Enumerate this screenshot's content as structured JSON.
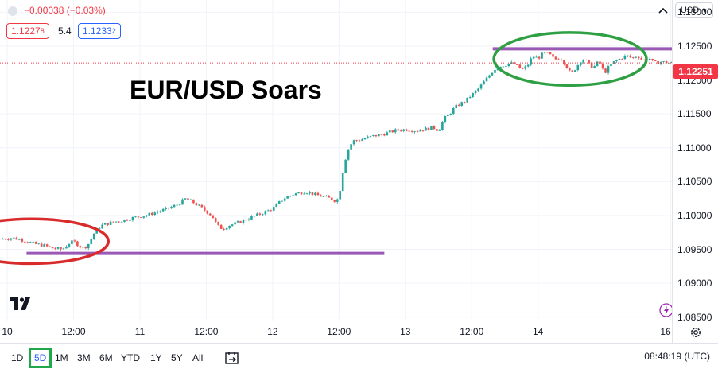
{
  "chart_data": {
    "type": "candlestick",
    "title": "EUR/USD Soars",
    "currency": "USD",
    "ylim": [
      1.0845,
      1.1318
    ],
    "yticks": [
      "1.13000",
      "1.12500",
      "1.12000",
      "1.11500",
      "1.11000",
      "1.10500",
      "1.10000",
      "1.09500",
      "1.09000",
      "1.08500"
    ],
    "ytick_values": [
      1.13,
      1.125,
      1.12,
      1.115,
      1.11,
      1.105,
      1.1,
      1.095,
      1.09,
      1.085
    ],
    "xticks": [
      {
        "label": "10",
        "t": 0
      },
      {
        "label": "12:00",
        "t": 12
      },
      {
        "label": "11",
        "t": 24
      },
      {
        "label": "12:00",
        "t": 36
      },
      {
        "label": "12",
        "t": 48
      },
      {
        "label": "12:00",
        "t": 60
      },
      {
        "label": "13",
        "t": 72
      },
      {
        "label": "12:00",
        "t": 84
      },
      {
        "label": "14",
        "t": 96
      },
      {
        "label": "16",
        "t": 120
      }
    ],
    "xlim": [
      -1.3,
      120.2
    ],
    "path": [
      [
        -1.3,
        1.0965
      ],
      [
        1,
        1.0967
      ],
      [
        3,
        1.0963
      ],
      [
        5,
        1.0958
      ],
      [
        6.5,
        1.0956
      ],
      [
        8,
        1.0952
      ],
      [
        10,
        1.095
      ],
      [
        11,
        1.0958
      ],
      [
        12,
        1.0962
      ],
      [
        13.5,
        1.0952
      ],
      [
        14.5,
        1.0955
      ],
      [
        15.8,
        1.0975
      ],
      [
        17,
        1.0985
      ],
      [
        19,
        1.099
      ],
      [
        21,
        1.0993
      ],
      [
        23,
        1.0997
      ],
      [
        25,
        1.1
      ],
      [
        27,
        1.1005
      ],
      [
        29,
        1.101
      ],
      [
        31,
        1.1017
      ],
      [
        32.3,
        1.1025
      ],
      [
        33.5,
        1.102
      ],
      [
        35,
        1.1012
      ],
      [
        37,
        1.1
      ],
      [
        38,
        1.0985
      ],
      [
        39,
        1.098
      ],
      [
        40,
        1.0985
      ],
      [
        42,
        1.099
      ],
      [
        44,
        1.0997
      ],
      [
        46,
        1.1003
      ],
      [
        48,
        1.101
      ],
      [
        50,
        1.1025
      ],
      [
        52,
        1.1032
      ],
      [
        54,
        1.1035
      ],
      [
        56,
        1.103
      ],
      [
        58,
        1.1026
      ],
      [
        59.3,
        1.1022
      ],
      [
        60,
        1.1025
      ],
      [
        60.3,
        1.1045
      ],
      [
        60.8,
        1.107
      ],
      [
        61.5,
        1.1095
      ],
      [
        62.5,
        1.111
      ],
      [
        64,
        1.1112
      ],
      [
        66,
        1.1117
      ],
      [
        68,
        1.112
      ],
      [
        70,
        1.1125
      ],
      [
        72,
        1.1127
      ],
      [
        74,
        1.1125
      ],
      [
        76,
        1.1128
      ],
      [
        77,
        1.113
      ],
      [
        78,
        1.1125
      ],
      [
        79,
        1.1143
      ],
      [
        80,
        1.115
      ],
      [
        81,
        1.116
      ],
      [
        82,
        1.1165
      ],
      [
        83,
        1.117
      ],
      [
        84,
        1.1178
      ],
      [
        85,
        1.1185
      ],
      [
        86,
        1.1195
      ],
      [
        87,
        1.1205
      ],
      [
        88,
        1.1215
      ],
      [
        89,
        1.122
      ],
      [
        90,
        1.1222
      ],
      [
        91,
        1.1225
      ],
      [
        92,
        1.1222
      ],
      [
        93,
        1.1215
      ],
      [
        94,
        1.122
      ],
      [
        95,
        1.1235
      ],
      [
        96,
        1.1232
      ],
      [
        97,
        1.124
      ],
      [
        98,
        1.1238
      ],
      [
        99,
        1.123
      ],
      [
        100,
        1.1233
      ],
      [
        101,
        1.1222
      ],
      [
        102,
        1.1208
      ],
      [
        103,
        1.122
      ],
      [
        104,
        1.1232
      ],
      [
        105,
        1.1225
      ],
      [
        106,
        1.1218
      ],
      [
        107,
        1.1228
      ],
      [
        108,
        1.121
      ],
      [
        109,
        1.1222
      ],
      [
        110,
        1.1228
      ],
      [
        111,
        1.1232
      ],
      [
        112,
        1.1236
      ],
      [
        113,
        1.1232
      ],
      [
        114,
        1.1236
      ],
      [
        115,
        1.1228
      ],
      [
        116,
        1.1233
      ],
      [
        117,
        1.1225
      ],
      [
        118,
        1.1227
      ],
      [
        119,
        1.1226
      ],
      [
        120.2,
        1.1225
      ]
    ],
    "last_price": "1.12251",
    "last_price_value": 1.12251,
    "annotations": {
      "support_line": {
        "t0": 3.5,
        "t1": 68.2,
        "price": 1.0944,
        "color": "#9b59b6"
      },
      "resistance_line": {
        "t0": 87.8,
        "t1": 120.2,
        "price": 1.1246,
        "color": "#9b59b6"
      },
      "red_ellipse": {
        "t_center": 4.4,
        "price_center": 1.0962,
        "t_radius": 13.9,
        "price_radius": 0.0033,
        "color": "#d92b2b"
      },
      "green_ellipse": {
        "t_center": 101.8,
        "price_center": 1.1231,
        "t_radius": 13.8,
        "price_radius": 0.0039,
        "color": "#2ea043"
      }
    },
    "colors": {
      "up": "#26a69a",
      "down": "#ef5350",
      "headline": "#000000"
    }
  },
  "legend": {
    "change": "−0.00038 (−0.03%)",
    "sell_main": "1.1227",
    "sell_sup": "8",
    "spread": "5.4",
    "buy_main": "1.1233",
    "buy_sup": "2"
  },
  "bottom_bar": {
    "ranges": [
      "1D",
      "5D",
      "1M",
      "3M",
      "6M",
      "YTD",
      "1Y",
      "5Y",
      "All"
    ],
    "active_range": "5D",
    "clock": "08:48:19 (UTC)"
  },
  "icons": {
    "logo": "tradingview-logo-icon",
    "date_range": "calendar-range-icon",
    "settings": "gear-icon",
    "collapse": "collapse-icon",
    "flash": "flash-icon",
    "dropdown": "chevron-down-icon"
  }
}
